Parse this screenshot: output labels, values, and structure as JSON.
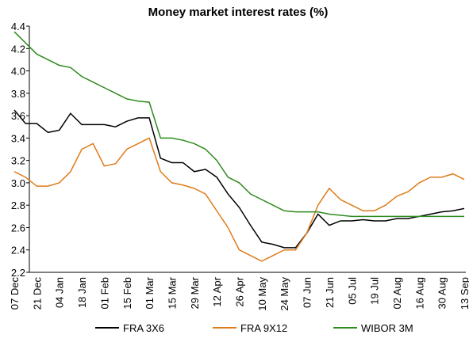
{
  "chart_data": {
    "type": "line",
    "title": "Money market interest rates (%)",
    "categories": [
      "07 Dec",
      null,
      "21 Dec",
      null,
      "04 Jan",
      null,
      "18 Jan",
      null,
      "01 Feb",
      null,
      "15 Feb",
      null,
      "01 Mar",
      null,
      "15 Mar",
      null,
      "29 Mar",
      null,
      "12 Apr",
      null,
      "26 Apr",
      null,
      "10 May",
      null,
      "24 May",
      null,
      "07 Jun",
      null,
      "21 Jun",
      null,
      "05 Jul",
      null,
      "19 Jul",
      null,
      "02 Aug",
      null,
      "16 Aug",
      null,
      "30 Aug",
      null,
      "13 Sep"
    ],
    "series": [
      {
        "name": "FRA 3X6",
        "color": "#000000",
        "values": [
          3.65,
          3.53,
          3.53,
          3.45,
          3.47,
          3.62,
          3.52,
          3.52,
          3.52,
          3.5,
          3.55,
          3.58,
          3.58,
          3.22,
          3.18,
          3.18,
          3.1,
          3.12,
          3.05,
          2.9,
          2.78,
          2.62,
          2.47,
          2.45,
          2.42,
          2.42,
          2.55,
          2.72,
          2.62,
          2.66,
          2.66,
          2.67,
          2.66,
          2.66,
          2.68,
          2.68,
          2.7,
          2.72,
          2.74,
          2.75,
          2.77
        ]
      },
      {
        "name": "FRA 9X12",
        "color": "#e07b1a",
        "values": [
          3.1,
          3.05,
          2.97,
          2.97,
          3.0,
          3.1,
          3.3,
          3.35,
          3.15,
          3.17,
          3.3,
          3.35,
          3.4,
          3.1,
          3.0,
          2.98,
          2.95,
          2.9,
          2.75,
          2.6,
          2.4,
          2.35,
          2.3,
          2.35,
          2.4,
          2.4,
          2.55,
          2.8,
          2.95,
          2.85,
          2.8,
          2.75,
          2.75,
          2.8,
          2.88,
          2.92,
          3.0,
          3.05,
          3.05,
          3.08,
          3.03
        ]
      },
      {
        "name": "WIBOR 3M",
        "color": "#2e8b1e",
        "values": [
          4.35,
          4.25,
          4.15,
          4.1,
          4.05,
          4.03,
          3.95,
          3.9,
          3.85,
          3.8,
          3.75,
          3.73,
          3.72,
          3.4,
          3.4,
          3.38,
          3.35,
          3.3,
          3.2,
          3.05,
          3.0,
          2.9,
          2.85,
          2.8,
          2.75,
          2.74,
          2.74,
          2.74,
          2.72,
          2.71,
          2.7,
          2.7,
          2.7,
          2.7,
          2.7,
          2.7,
          2.7,
          2.7,
          2.7,
          2.7,
          2.7
        ]
      }
    ],
    "ylim": [
      2.2,
      4.4
    ],
    "yticks": [
      2.2,
      2.4,
      2.6,
      2.8,
      {
        "value": 3,
        "label": "3.0"
      },
      3.2,
      3.4,
      3.6,
      3.8,
      {
        "value": 4,
        "label": "4.0"
      },
      4.2,
      4.4
    ],
    "grid": false,
    "legend": "bottom"
  }
}
